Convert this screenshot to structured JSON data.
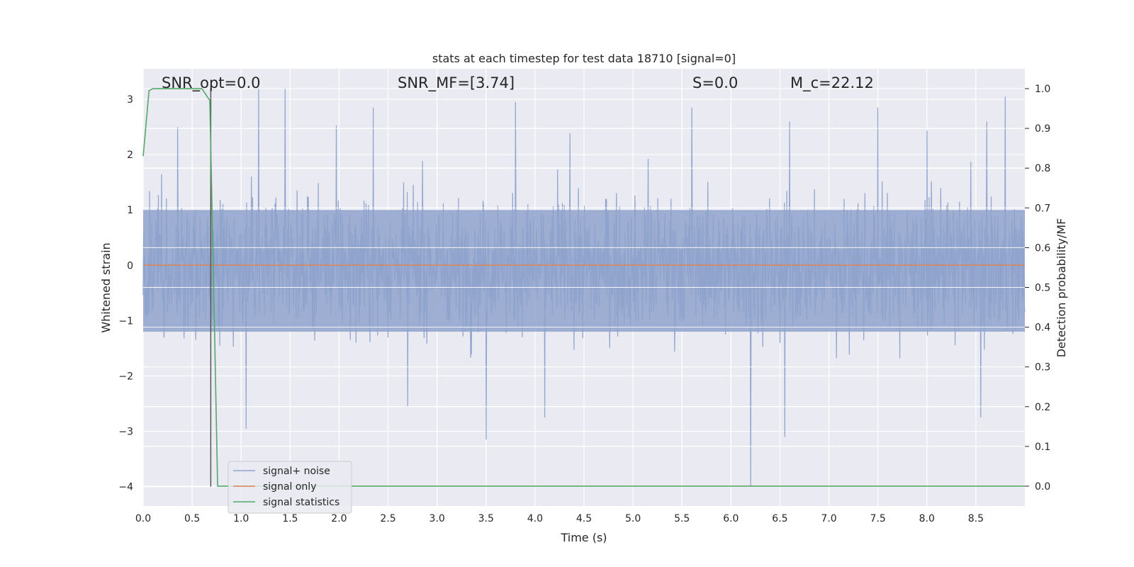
{
  "chart_data": {
    "type": "line",
    "title": "stats at each timestep for test data 18710 [signal=0]",
    "xlabel": "Time (s)",
    "ylabel": "Whitened strain",
    "ylabel_right": "Detection probability/MF",
    "xlim": [
      0.0,
      9.0
    ],
    "ylim": [
      -4.35,
      3.55
    ],
    "ylim_right": [
      -0.05,
      1.05
    ],
    "x_ticks": [
      "0.0",
      "0.5",
      "1.0",
      "1.5",
      "2.0",
      "2.5",
      "3.0",
      "3.5",
      "4.0",
      "4.5",
      "5.0",
      "5.5",
      "6.0",
      "6.5",
      "7.0",
      "7.5",
      "8.0",
      "8.5"
    ],
    "y_ticks": [
      "3",
      "2",
      "1",
      "0",
      "−1",
      "−2",
      "−3",
      "−4"
    ],
    "y_ticks_right": [
      "1.0",
      "0.9",
      "0.8",
      "0.7",
      "0.6",
      "0.5",
      "0.4",
      "0.3",
      "0.2",
      "0.1",
      "0.0"
    ],
    "grid": true,
    "legend_position": "lower-left",
    "annotations": [
      {
        "text": "SNR_opt=0.0",
        "x": 0.19,
        "y": 3.3
      },
      {
        "text": "SNR_MF=[3.74]",
        "x": 2.6,
        "y": 3.3
      },
      {
        "text": "S=0.0",
        "x": 5.6,
        "y": 3.3
      },
      {
        "text": "M_c=22.12",
        "x": 6.6,
        "y": 3.3
      }
    ],
    "vertical_line": {
      "x": 0.69,
      "y_range": [
        -4.0,
        3.2
      ]
    },
    "series": [
      {
        "name": "signal+ noise",
        "color": "#8fa3cc",
        "axis": "left",
        "kind": "noise",
        "typical_range": [
          -1.2,
          1.0
        ],
        "peaks": [
          {
            "x": 1.18,
            "y": 3.2
          },
          {
            "x": 1.45,
            "y": 3.2
          },
          {
            "x": 2.35,
            "y": 2.85
          },
          {
            "x": 3.8,
            "y": 2.95
          },
          {
            "x": 5.6,
            "y": 2.85
          },
          {
            "x": 6.6,
            "y": 2.6
          },
          {
            "x": 7.5,
            "y": 2.85
          },
          {
            "x": 8.8,
            "y": 3.05
          },
          {
            "x": 0.35,
            "y": 2.5
          },
          {
            "x": 1.05,
            "y": -2.95
          },
          {
            "x": 3.5,
            "y": -3.15
          },
          {
            "x": 4.1,
            "y": -2.75
          },
          {
            "x": 6.2,
            "y": -4.0
          },
          {
            "x": 6.55,
            "y": -3.1
          },
          {
            "x": 8.55,
            "y": -2.75
          },
          {
            "x": 2.7,
            "y": -2.55
          }
        ]
      },
      {
        "name": "signal only",
        "color": "#dd8452",
        "axis": "left",
        "x": [
          0.0,
          9.0
        ],
        "y": [
          0.0,
          0.0
        ]
      },
      {
        "name": "signal statistics",
        "color": "#55a868",
        "axis": "right",
        "x": [
          0.0,
          0.06,
          0.1,
          0.2,
          0.4,
          0.6,
          0.68,
          0.72,
          0.76,
          0.8,
          1.0,
          9.0
        ],
        "y": [
          0.83,
          0.995,
          1.0,
          1.0,
          1.0,
          1.0,
          0.97,
          0.5,
          0.0,
          0.0,
          0.0,
          0.0
        ]
      }
    ]
  }
}
